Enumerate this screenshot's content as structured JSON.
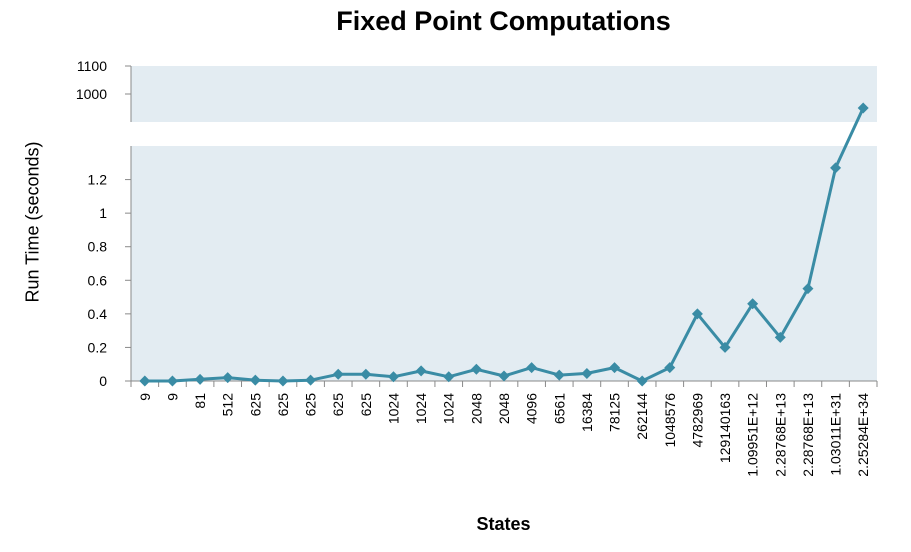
{
  "chart_data": {
    "type": "line",
    "title": "Fixed Point Computations",
    "xlabel": "States",
    "ylabel": "Run Time (seconds)",
    "categories": [
      "9",
      "9",
      "81",
      "512",
      "625",
      "625",
      "625",
      "625",
      "625",
      "1024",
      "1024",
      "1024",
      "2048",
      "2048",
      "4096",
      "6561",
      "16384",
      "78125",
      "262144",
      "1048576",
      "4782969",
      "129140163",
      "1.09951E+12",
      "2.28768E+13",
      "2.28768E+13",
      "1.03011E+31",
      "2.25284E+34"
    ],
    "series": [
      {
        "name": "",
        "values": [
          0.0,
          0.0,
          0.01,
          0.02,
          0.005,
          0.0,
          0.005,
          0.04,
          0.04,
          0.025,
          0.06,
          0.025,
          0.07,
          0.03,
          0.08,
          0.035,
          0.045,
          0.08,
          0.0,
          0.08,
          0.4,
          0.2,
          0.46,
          0.26,
          0.55,
          1.27,
          950
        ]
      }
    ],
    "y_axis": {
      "lower_segment": {
        "range": [
          0,
          1.4
        ],
        "ticks": [
          "0",
          "0.2",
          "0.4",
          "0.6",
          "0.8",
          "1",
          "1.2"
        ]
      },
      "upper_segment": {
        "range": [
          900,
          1100
        ],
        "ticks": [
          "1000",
          "1100"
        ]
      },
      "break": true
    },
    "grid": false,
    "legend": "none",
    "colors": {
      "line": "#3a8ca5",
      "plot_background": "#e3ecf2",
      "axis": "#8a8a8a"
    }
  }
}
